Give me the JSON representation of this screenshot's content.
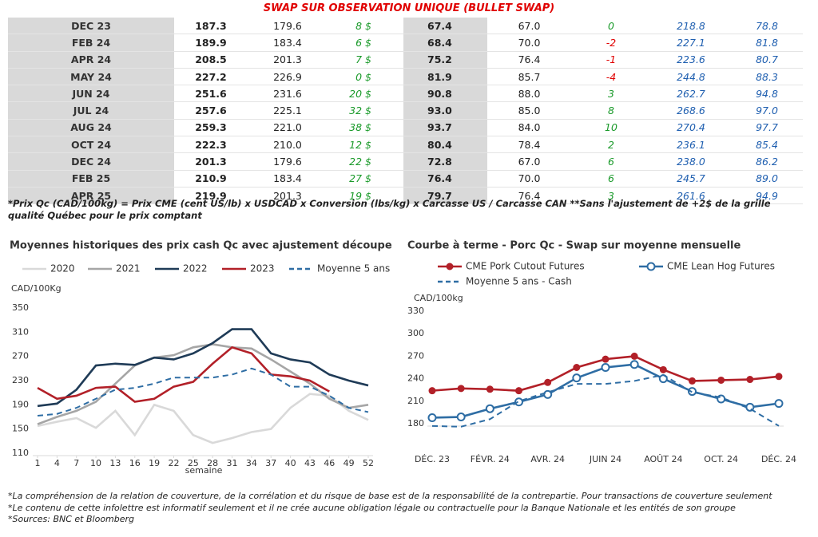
{
  "table": {
    "title": "SWAP SUR OBSERVATION UNIQUE (BULLET SWAP)",
    "rows": [
      [
        "DEC 23",
        "187.3",
        "179.6",
        "8 $",
        "67.4",
        "67.0",
        "0",
        "218.8",
        "78.8"
      ],
      [
        "FEB 24",
        "189.9",
        "183.4",
        "6 $",
        "68.4",
        "70.0",
        "-2",
        "227.1",
        "81.8"
      ],
      [
        "APR 24",
        "208.5",
        "201.3",
        "7 $",
        "75.2",
        "76.4",
        "-1",
        "223.6",
        "80.7"
      ],
      [
        "MAY 24",
        "227.2",
        "226.9",
        "0 $",
        "81.9",
        "85.7",
        "-4",
        "244.8",
        "88.3"
      ],
      [
        "JUN 24",
        "251.6",
        "231.6",
        "20 $",
        "90.8",
        "88.0",
        "3",
        "262.7",
        "94.8"
      ],
      [
        "JUL 24",
        "257.6",
        "225.1",
        "32 $",
        "93.0",
        "85.0",
        "8",
        "268.6",
        "97.0"
      ],
      [
        "AUG 24",
        "259.3",
        "221.0",
        "38 $",
        "93.7",
        "84.0",
        "10",
        "270.4",
        "97.7"
      ],
      [
        "OCT 24",
        "222.3",
        "210.0",
        "12 $",
        "80.4",
        "78.4",
        "2",
        "236.1",
        "85.4"
      ],
      [
        "DEC 24",
        "201.3",
        "179.6",
        "22 $",
        "72.8",
        "67.0",
        "6",
        "238.0",
        "86.2"
      ],
      [
        "FEB 25",
        "210.9",
        "183.4",
        "27 $",
        "76.4",
        "70.0",
        "6",
        "245.7",
        "89.0"
      ],
      [
        "APR 25",
        "219.9",
        "201.3",
        "19 $",
        "79.7",
        "76.4",
        "3",
        "261.6",
        "94.9"
      ]
    ],
    "note": "*Prix Qc (CAD/100kg) = Prix CME (cent US/lb) x USDCAD x Conversion (lbs/kg) x Carcasse US / Carcasse CAN **Sans l'ajustement de +2$ de la grille qualité Québec pour le prix comptant"
  },
  "footnotes": [
    "*La compréhension de la relation de couverture, de la corrélation et du risque de base est de la responsabilité de la contrepartie. Pour transactions de couverture seulement",
    "*Le contenu de cette infolettre est informatif seulement et il ne crée aucune obligation légale ou contractuelle pour la Banque Nationale et les entités de son groupe",
    "*Sources: BNC et Bloomberg"
  ],
  "chart_data": [
    {
      "type": "line",
      "title": "Moyennes historiques des prix cash Qc avec ajustement découpe",
      "y_label": "CAD/100Kg",
      "x_label": "semaine",
      "x": [
        1,
        4,
        7,
        10,
        13,
        16,
        19,
        22,
        25,
        28,
        31,
        34,
        37,
        40,
        43,
        46,
        49,
        52
      ],
      "xlim": [
        1,
        52
      ],
      "xticks": [
        1,
        4,
        7,
        10,
        13,
        16,
        19,
        22,
        25,
        28,
        31,
        34,
        37,
        40,
        43,
        46,
        49,
        52
      ],
      "ylim": [
        110,
        350
      ],
      "yticks": [
        110,
        150,
        190,
        230,
        270,
        310,
        350
      ],
      "series": [
        {
          "name": "2020",
          "color": "#d9d9d9",
          "values": [
            155,
            162,
            168,
            152,
            180,
            140,
            190,
            180,
            140,
            127,
            135,
            145,
            150,
            185,
            208,
            205,
            180,
            165
          ]
        },
        {
          "name": "2021",
          "color": "#a6a6a6",
          "values": [
            158,
            170,
            180,
            195,
            225,
            255,
            268,
            272,
            285,
            290,
            285,
            283,
            265,
            245,
            225,
            200,
            185,
            190
          ]
        },
        {
          "name": "2022",
          "color": "#1f3b57",
          "values": [
            188,
            192,
            215,
            255,
            258,
            256,
            268,
            265,
            275,
            292,
            315,
            315,
            275,
            265,
            260,
            240,
            230,
            222
          ]
        },
        {
          "name": "2023",
          "color": "#b22028",
          "values": [
            218,
            200,
            205,
            218,
            220,
            195,
            200,
            220,
            228,
            258,
            285,
            275,
            240,
            237,
            230,
            212,
            null,
            null
          ]
        },
        {
          "name": "Moyenne 5 ans",
          "color": "#2e6da4",
          "dash": true,
          "values": [
            172,
            175,
            185,
            200,
            215,
            218,
            225,
            235,
            235,
            235,
            240,
            250,
            240,
            220,
            220,
            205,
            185,
            178
          ]
        }
      ]
    },
    {
      "type": "line",
      "title": "Courbe à terme - Porc Qc - Swap sur moyenne mensuelle",
      "y_label": "CAD/100kg",
      "categories": [
        "DÉC. 23",
        null,
        "FÉVR. 24",
        null,
        "AVR. 24",
        null,
        "JUIN 24",
        null,
        "AOÛT 24",
        null,
        "OCT. 24",
        null,
        "DÉC. 24"
      ],
      "ylim": [
        180,
        330
      ],
      "yticks": [
        180,
        210,
        240,
        270,
        300,
        330
      ],
      "series": [
        {
          "name": "CME Pork Cutout Futures",
          "color": "#b22028",
          "marker": "filled",
          "values": [
            224,
            227,
            226,
            224,
            235,
            255,
            266,
            270,
            252,
            237,
            238,
            239,
            243
          ]
        },
        {
          "name": "CME Lean Hog Futures",
          "color": "#2e6da4",
          "marker": "hollow",
          "values": [
            188,
            189,
            200,
            209,
            219,
            241,
            255,
            259,
            240,
            223,
            213,
            202,
            207
          ]
        },
        {
          "name": "Moyenne 5 ans - Cash",
          "color": "#2e6da4",
          "dash": true,
          "values": [
            177,
            176,
            186,
            210,
            222,
            233,
            233,
            237,
            245,
            222,
            215,
            200,
            177
          ]
        }
      ]
    }
  ]
}
